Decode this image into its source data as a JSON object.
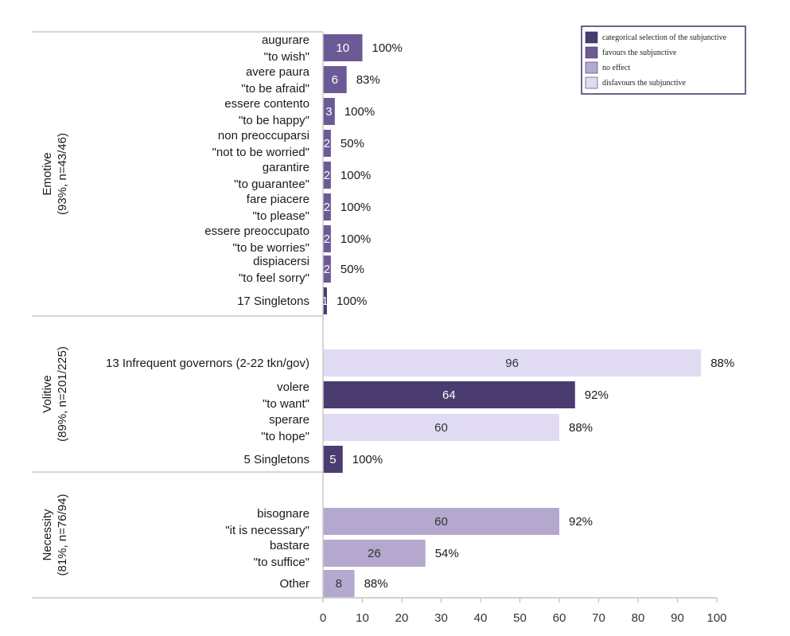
{
  "chart_data": {
    "type": "bar",
    "orientation": "horizontal",
    "xlim": [
      0,
      100
    ],
    "xticks": [
      0,
      10,
      20,
      30,
      40,
      50,
      60,
      70,
      80,
      90,
      100
    ],
    "grid": false,
    "legend": {
      "position": "top-right",
      "items": [
        {
          "key": "categorical",
          "label": "categorical selection of the subjunctive",
          "color": "#4a3b70"
        },
        {
          "key": "favours",
          "label": "favours the subjunctive",
          "color": "#6c5a96"
        },
        {
          "key": "noeffect",
          "label": "no effect",
          "color": "#b4a8cf"
        },
        {
          "key": "disfavours",
          "label": "disfavours the subjunctive",
          "color": "#e0dbf3"
        }
      ]
    },
    "groups": [
      {
        "label_line1": "Emotive",
        "label_line2": "(93%, n=43/46)",
        "bars": [
          {
            "line1": "augurare",
            "line2": "\"to wish\"",
            "value": 10,
            "percent": "100%",
            "category": "favours"
          },
          {
            "line1": "avere paura",
            "line2": "\"to be afraid\"",
            "value": 6,
            "percent": "83%",
            "category": "favours"
          },
          {
            "line1": "essere contento",
            "line2": "\"to be happy\"",
            "value": 3,
            "percent": "100%",
            "category": "favours"
          },
          {
            "line1": "non preoccuparsi",
            "line2": "\"not to be worried\"",
            "value": 2,
            "percent": "50%",
            "category": "favours"
          },
          {
            "line1": "garantire",
            "line2": "\"to guarantee\"",
            "value": 2,
            "percent": "100%",
            "category": "favours"
          },
          {
            "line1": "fare piacere",
            "line2": "\"to please\"",
            "value": 2,
            "percent": "100%",
            "category": "favours"
          },
          {
            "line1": "essere preoccupato",
            "line2": "\"to be worries\"",
            "value": 2,
            "percent": "100%",
            "category": "favours"
          },
          {
            "line1": "dispiacersi",
            "line2": "\"to feel sorry\"",
            "value": 2,
            "percent": "50%",
            "category": "favours"
          },
          {
            "line1": "17 Singletons",
            "line2": "",
            "value": 1,
            "percent": "100%",
            "category": "categorical"
          }
        ]
      },
      {
        "label_line1": "Volitive",
        "label_line2": "(89%, n=201/225)",
        "bars": [
          {
            "line1": "13 Infrequent governors (2-22 tkn/gov)",
            "line2": "",
            "value": 96,
            "percent": "88%",
            "category": "disfavours"
          },
          {
            "line1": "volere",
            "line2": "\"to want\"",
            "value": 64,
            "percent": "92%",
            "category": "categorical"
          },
          {
            "line1": "sperare",
            "line2": "\"to hope\"",
            "value": 60,
            "percent": "88%",
            "category": "disfavours"
          },
          {
            "line1": "5 Singletons",
            "line2": "",
            "value": 5,
            "percent": "100%",
            "category": "categorical"
          }
        ]
      },
      {
        "label_line1": "Necessity",
        "label_line2": "(81%, n=76/94)",
        "bars": [
          {
            "line1": "bisognare",
            "line2": "\"it is necessary\"",
            "value": 60,
            "percent": "92%",
            "category": "noeffect"
          },
          {
            "line1": "bastare",
            "line2": "\"to suffice\"",
            "value": 26,
            "percent": "54%",
            "category": "noeffect"
          },
          {
            "line1": "Other",
            "line2": "",
            "value": 8,
            "percent": "88%",
            "category": "noeffect"
          }
        ]
      }
    ]
  }
}
